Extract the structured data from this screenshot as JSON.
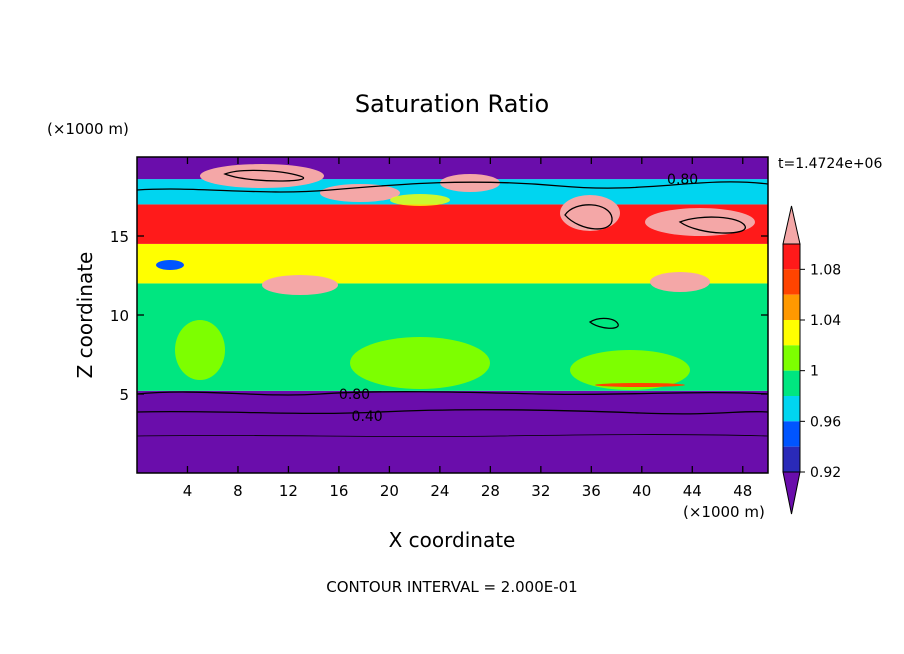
{
  "chart_data": {
    "type": "heatmap",
    "title": "Saturation Ratio",
    "xlabel": "X coordinate",
    "ylabel": "Z coordinate",
    "x_unit": "(×1000 m)",
    "y_unit": "(×1000 m)",
    "xlim": [
      0,
      50
    ],
    "ylim": [
      0,
      20
    ],
    "x_ticks": [
      4,
      8,
      12,
      16,
      20,
      24,
      28,
      32,
      36,
      40,
      44,
      48
    ],
    "y_ticks": [
      5,
      10,
      15
    ],
    "time_label": "t=1.4724e+06",
    "footer": "CONTOUR INTERVAL = 2.000E-01",
    "contour_labels": [
      {
        "text": "0.80",
        "x": 16,
        "z": 5.0
      },
      {
        "text": "0.40",
        "x": 17,
        "z": 3.6
      },
      {
        "text": "0.80",
        "x": 42,
        "z": 18.6
      }
    ],
    "colorbar": {
      "tick_labels": [
        "0.92",
        "0.96",
        "1",
        "1.04",
        "1.08"
      ],
      "levels": [
        0.92,
        0.94,
        0.96,
        0.98,
        1.0,
        1.02,
        1.04,
        1.06,
        1.08,
        1.1
      ],
      "colors": [
        "#6a0dab",
        "#2a2ab8",
        "#0055ff",
        "#00d5f0",
        "#00e680",
        "#7dff00",
        "#ffff00",
        "#ff9900",
        "#ff4400",
        "#ff1a1a",
        "#f4a7a7"
      ]
    },
    "field_layers": [
      {
        "z_bottom": 0,
        "z_top": 5.2,
        "value": 0.88
      },
      {
        "z_bottom": 5.2,
        "z_top": 12,
        "value": 0.99
      },
      {
        "z_bottom": 12,
        "z_top": 14.5,
        "value": 1.02
      },
      {
        "z_bottom": 14.5,
        "z_top": 17,
        "value": 1.09
      },
      {
        "z_bottom": 17,
        "z_top": 18.6,
        "value": 0.96
      },
      {
        "z_bottom": 18.6,
        "z_top": 20,
        "value": 0.9
      }
    ]
  }
}
